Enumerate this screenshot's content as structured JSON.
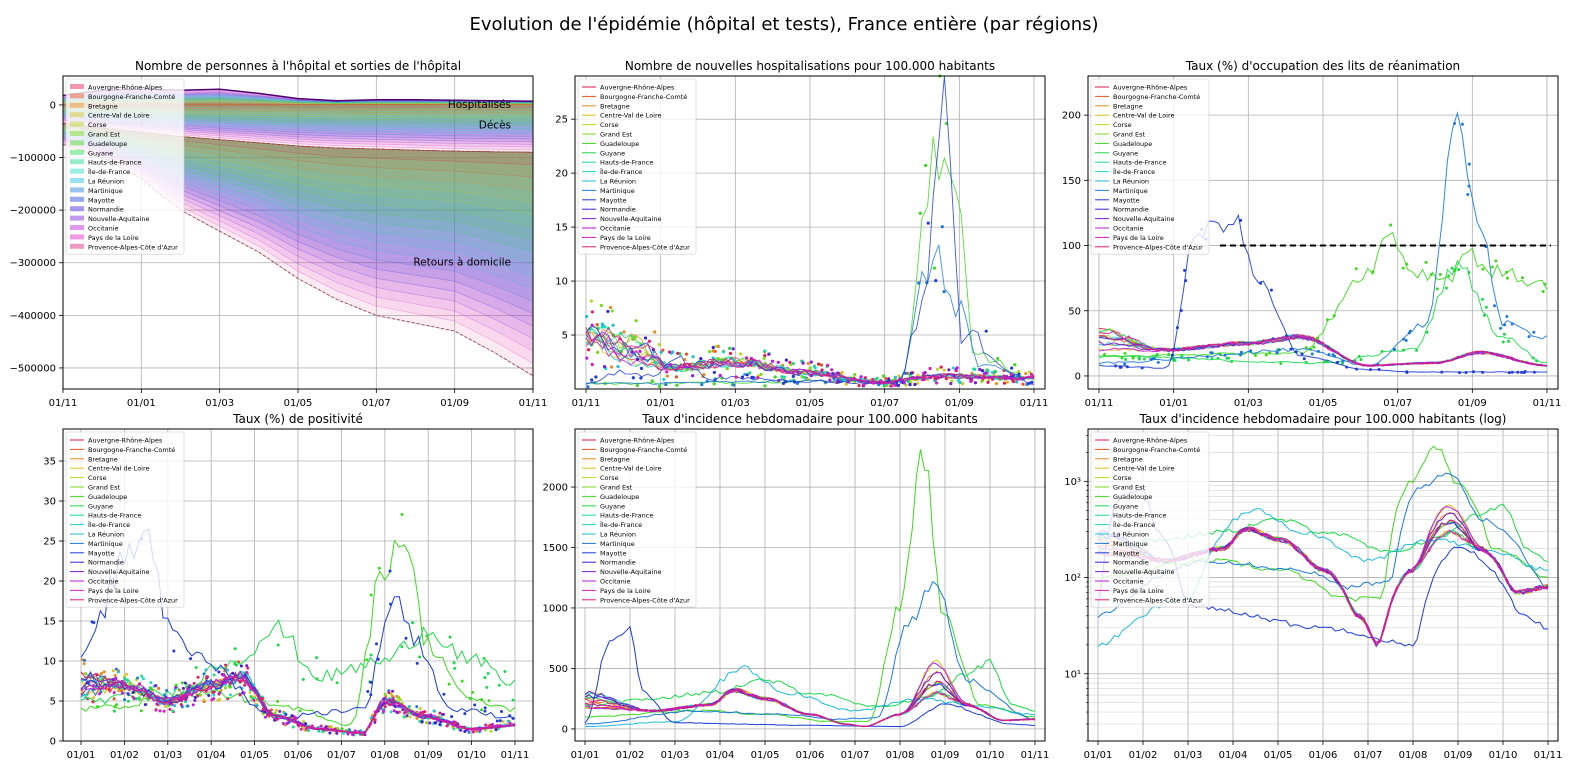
{
  "figure": {
    "title": "Evolution de l'épidémie (hôpital et tests), France entière (par régions)"
  },
  "regions": [
    "Auvergne-Rhône-Alpes",
    "Bourgogne-Franche-Comté",
    "Bretagne",
    "Centre-Val de Loire",
    "Corse",
    "Grand Est",
    "Guadeloupe",
    "Guyane",
    "Hauts-de-France",
    "Île-de-France",
    "La Réunion",
    "Martinique",
    "Mayotte",
    "Normandie",
    "Nouvelle-Aquitaine",
    "Occitanie",
    "Pays de la Loire",
    "Provence-Alpes-Côte d'Azur"
  ],
  "region_colors": [
    "#e6194b",
    "#e8541d",
    "#e88a1d",
    "#d9c21d",
    "#b6d91d",
    "#79d91d",
    "#3cd91d",
    "#1dd94b",
    "#1dd98a",
    "#1dd9c8",
    "#1dbcd9",
    "#1d7ad9",
    "#1d3cd9",
    "#3c1dd9",
    "#7a1dd9",
    "#b91dd9",
    "#d91dbc",
    "#d91d7a"
  ],
  "chart_data": [
    {
      "type": "area",
      "title": "Nombre de personnes à l'hôpital et sorties de l'hôpital",
      "x_ticks": [
        "01/11",
        "01/01",
        "01/03",
        "01/05",
        "01/07",
        "01/09",
        "01/11"
      ],
      "ylim": [
        -540000,
        55000
      ],
      "y_ticks": [
        0,
        -100000,
        -200000,
        -300000,
        -400000,
        -500000
      ],
      "y_tick_labels": [
        "0",
        "−100000",
        "−200000",
        "−300000",
        "−400000",
        "−500000"
      ],
      "annotations": [
        "Hospitalisés",
        "Décès",
        "Retours à domicile"
      ],
      "x_months": [
        0,
        2,
        4,
        6,
        8,
        10,
        12
      ],
      "hospitalises_total": [
        18000,
        28000,
        30000,
        28000,
        30000,
        22000,
        12000,
        8000,
        10000,
        10000,
        9000,
        8000,
        7000
      ],
      "deces_total": [
        -35000,
        -44000,
        -52000,
        -60000,
        -66000,
        -72000,
        -78000,
        -82000,
        -84000,
        -86000,
        -88000,
        -89000,
        -90000
      ],
      "retours_total": [
        -75000,
        -100000,
        -140000,
        -200000,
        -240000,
        -280000,
        -330000,
        -370000,
        -400000,
        -415000,
        -430000,
        -470000,
        -515000
      ],
      "legend_loc": "upper left"
    },
    {
      "type": "scatter",
      "title": "Nombre de nouvelles hospitalisations pour 100.000 habitants",
      "x_ticks": [
        "01/11",
        "01/01",
        "01/03",
        "01/05",
        "01/07",
        "01/09",
        "01/11"
      ],
      "ylim": [
        0,
        29
      ],
      "y_ticks": [
        5,
        10,
        15,
        20,
        25
      ],
      "legend_loc": "upper left"
    },
    {
      "type": "line",
      "title": "Taux (%) d'occupation des lits de réanimation",
      "x_ticks": [
        "01/11",
        "01/01",
        "01/03",
        "01/05",
        "01/07",
        "01/09",
        "01/11"
      ],
      "ylim": [
        -10,
        230
      ],
      "y_ticks": [
        0,
        50,
        100,
        150,
        200
      ],
      "reference_line": 100,
      "legend_loc": "upper left"
    },
    {
      "type": "line",
      "title": "Taux (%) de positivité",
      "x_ticks": [
        "01/01",
        "01/02",
        "01/03",
        "01/04",
        "01/05",
        "01/06",
        "01/07",
        "01/08",
        "01/09",
        "01/10",
        "01/11"
      ],
      "ylim": [
        0,
        39
      ],
      "y_ticks": [
        0,
        5,
        10,
        15,
        20,
        25,
        30,
        35
      ],
      "legend_loc": "upper left"
    },
    {
      "type": "line",
      "title": "Taux d'incidence hebdomadaire pour 100.000 habitants",
      "x_ticks": [
        "01/01",
        "01/02",
        "01/03",
        "01/04",
        "01/05",
        "01/06",
        "01/07",
        "01/08",
        "01/09",
        "01/10",
        "01/11"
      ],
      "ylim": [
        -100,
        2480
      ],
      "y_ticks": [
        0,
        500,
        1000,
        1500,
        2000
      ],
      "legend_loc": "upper left"
    },
    {
      "type": "line",
      "title": "Taux d'incidence hebdomadaire pour 100.000 habitants (log)",
      "x_ticks": [
        "01/01",
        "01/02",
        "01/03",
        "01/04",
        "01/05",
        "01/06",
        "01/07",
        "01/08",
        "01/09",
        "01/10",
        "01/11"
      ],
      "y_scale": "log",
      "ylim": [
        2,
        3500
      ],
      "y_ticks": [
        10,
        100,
        1000
      ],
      "y_tick_labels": [
        "10¹",
        "10²",
        "10³"
      ],
      "legend_loc": "upper left"
    }
  ]
}
